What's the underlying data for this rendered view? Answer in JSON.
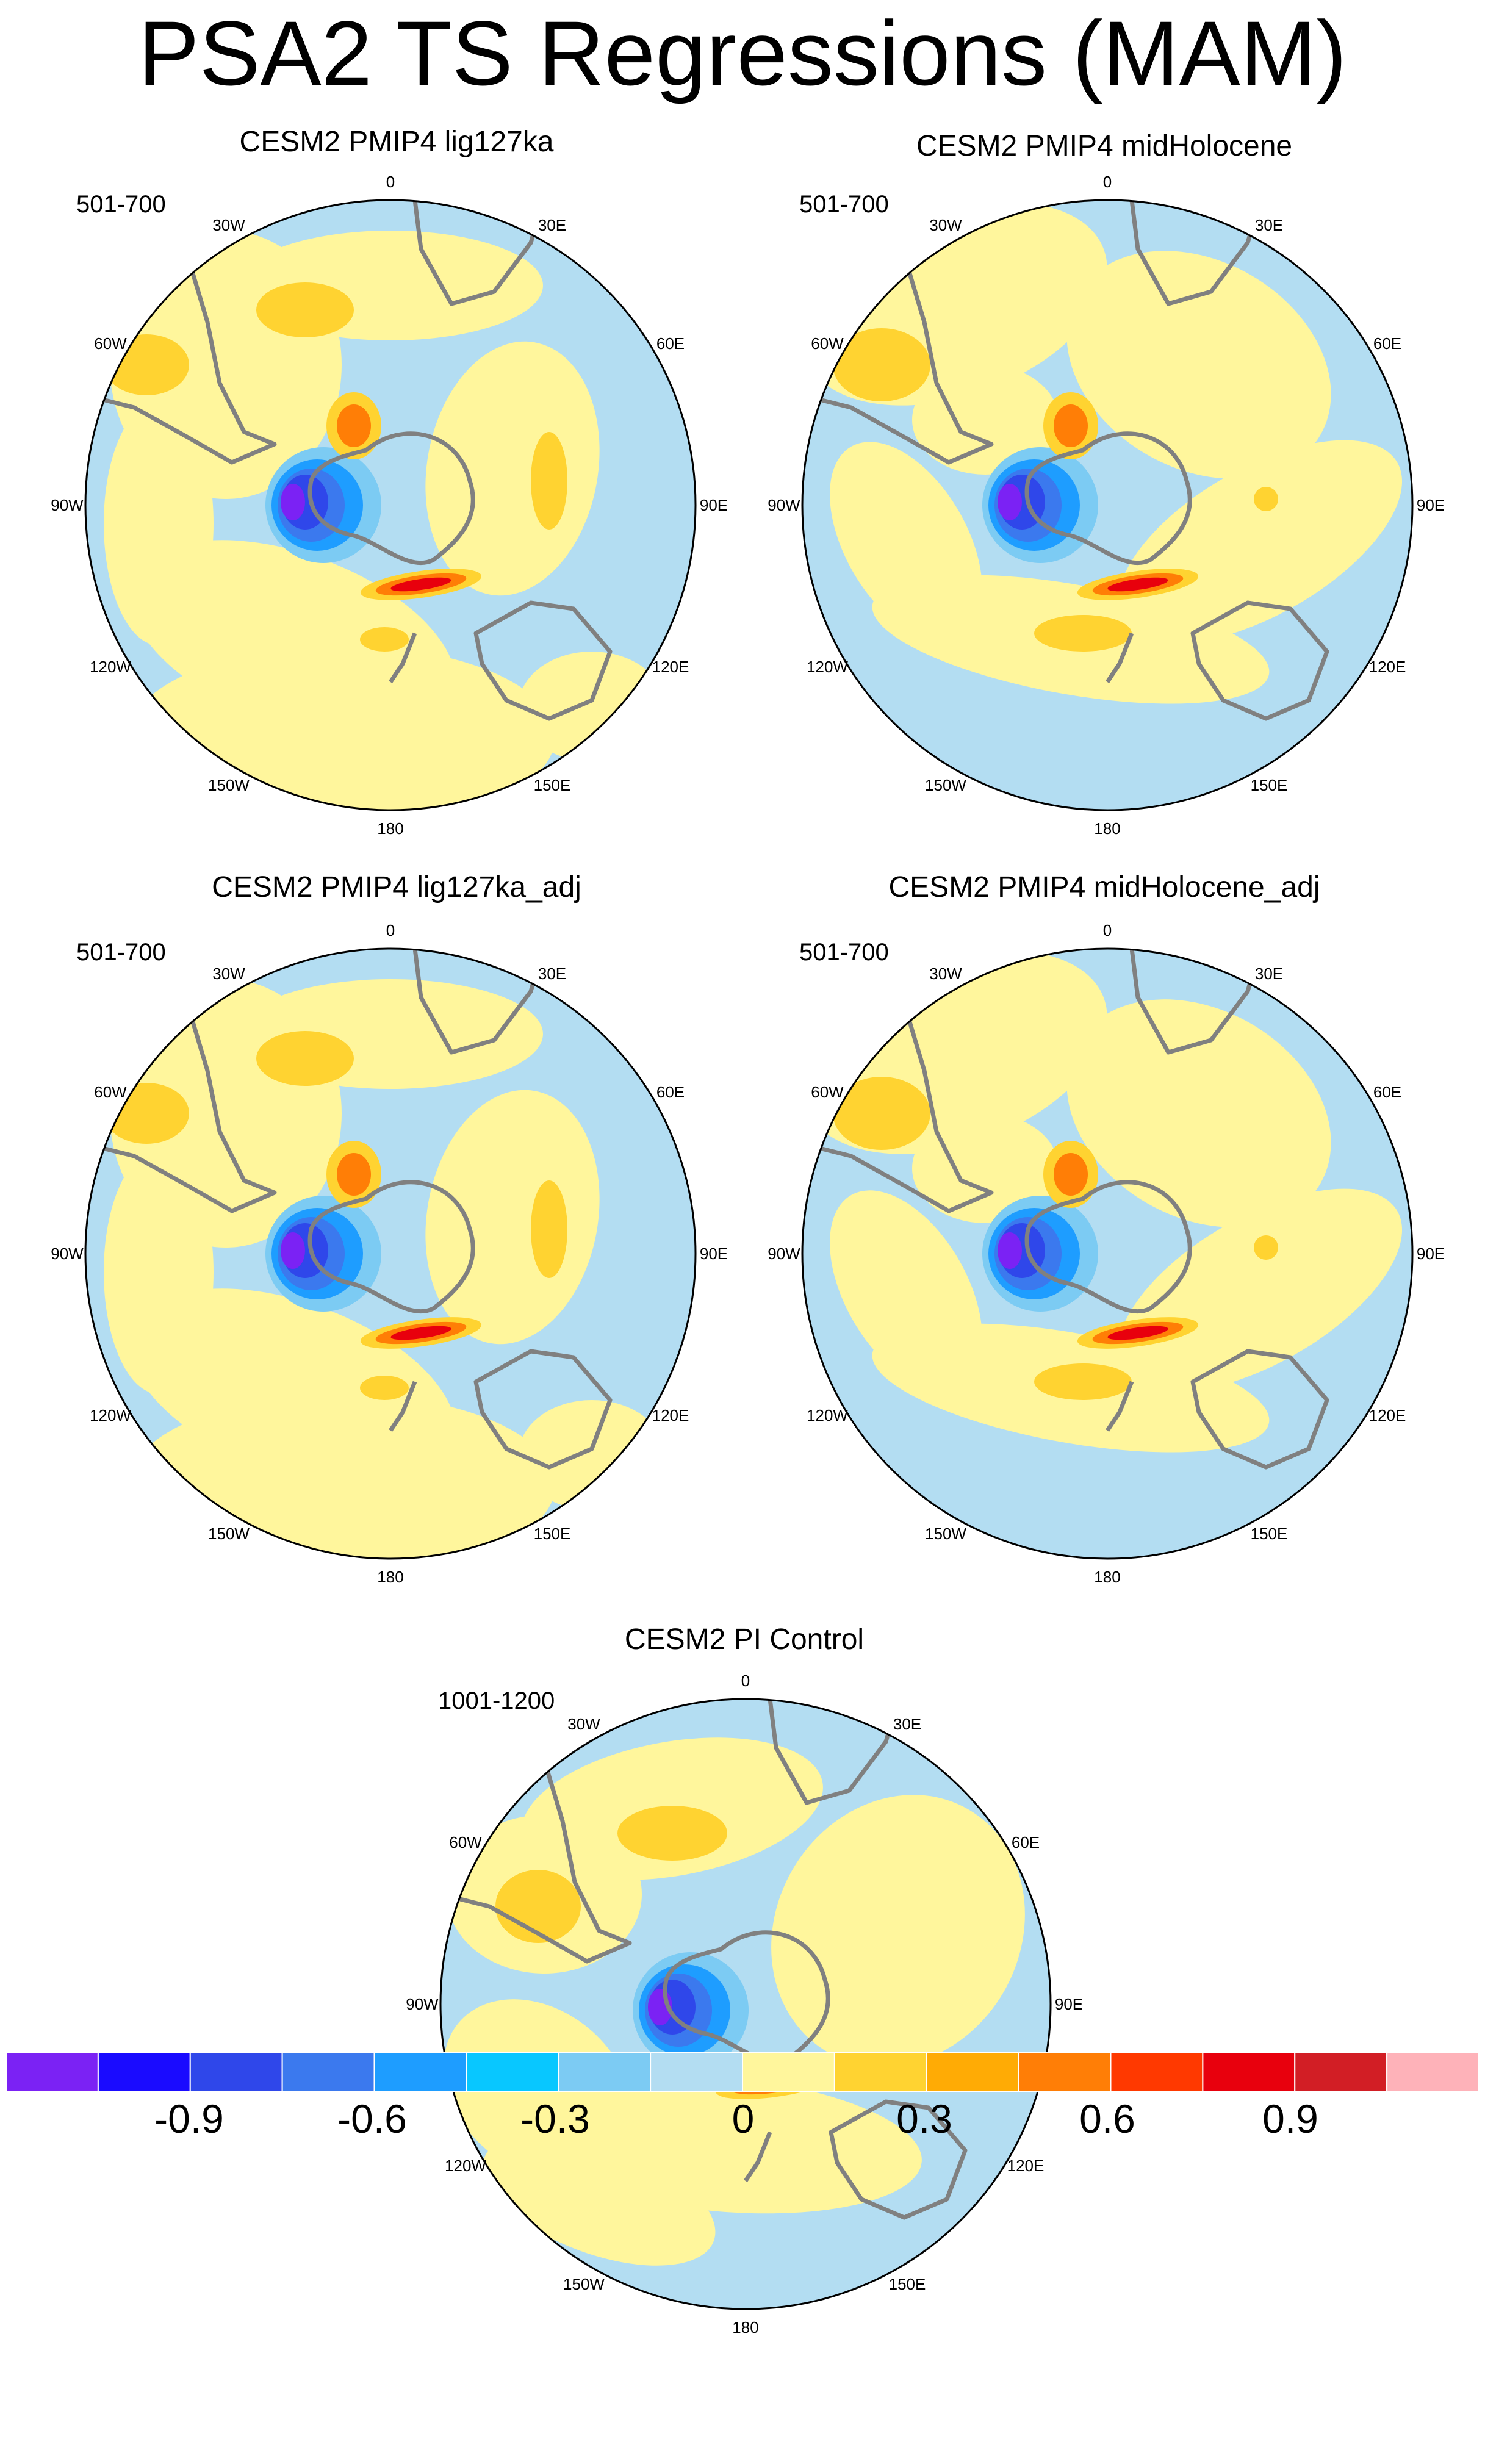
{
  "title": "PSA2 TS Regressions (MAM)",
  "panels": [
    {
      "id": "lig127ka",
      "title": "CESM2 PMIP4 lig127ka",
      "years": "501-700"
    },
    {
      "id": "midHolocene",
      "title": "CESM2 PMIP4 midHolocene",
      "years": "501-700"
    },
    {
      "id": "lig127ka_adj",
      "title": "CESM2 PMIP4 lig127ka_adj",
      "years": "501-700"
    },
    {
      "id": "midHolocene_adj",
      "title": "CESM2 PMIP4 midHolocene_adj",
      "years": "501-700"
    },
    {
      "id": "pi_control",
      "title": "CESM2 PI Control",
      "years": "1001-1200"
    }
  ],
  "lon_labels": [
    "0",
    "30E",
    "60E",
    "90E",
    "120E",
    "150E",
    "180",
    "150W",
    "120W",
    "90W",
    "60W",
    "30W"
  ],
  "colorbar": {
    "colors": [
      "#7b22f4",
      "#1a0bff",
      "#2f47ea",
      "#3b79ee",
      "#1e9dff",
      "#08c7ff",
      "#7ccbf3",
      "#b3ddf2",
      "#fff69c",
      "#ffd331",
      "#ffab05",
      "#ff7e06",
      "#ff3900",
      "#e8000d",
      "#d21e25",
      "#feb2b9"
    ],
    "tick_labels": [
      "-0.9",
      "-0.6",
      "-0.3",
      "0",
      "0.3",
      "0.6",
      "0.9"
    ]
  },
  "map_colors": {
    "land_outline": "#808080",
    "ocean_neutral": "#b3ddf2",
    "warm_light": "#fff69c"
  },
  "chart_data": {
    "type": "heatmap",
    "variable": "TS",
    "contour_levels": [
      -1.05,
      -0.9,
      -0.75,
      -0.6,
      -0.45,
      -0.3,
      -0.15,
      0,
      0.15,
      0.3,
      0.45,
      0.6,
      0.75,
      0.9,
      1.05
    ],
    "projection": "polar stereographic (Southern Hemisphere)"
  }
}
